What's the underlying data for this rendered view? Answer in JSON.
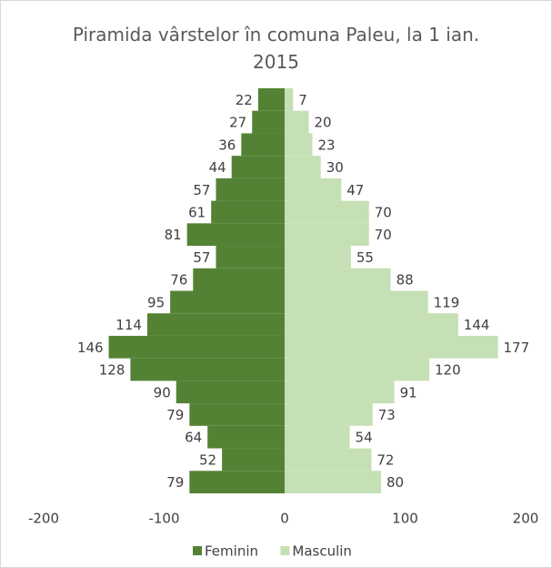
{
  "chart_data": {
    "type": "pyramid",
    "title": "Piramida vârstelor în comuna Paleu, la 1 ian. 2015",
    "orientation": "horizontal",
    "categories": [
      null,
      null,
      null,
      null,
      null,
      null,
      null,
      null,
      null,
      null,
      null,
      null,
      null,
      null,
      null,
      null,
      null,
      null
    ],
    "series": [
      {
        "name": "Feminin",
        "color": "#548235",
        "values": [
          -22,
          -27,
          -36,
          -44,
          -57,
          -61,
          -81,
          -57,
          -76,
          -95,
          -114,
          -146,
          -128,
          -90,
          -79,
          -64,
          -52,
          -79
        ],
        "value_labels": [
          "22",
          "27",
          "36",
          "44",
          "57",
          "61",
          "81",
          "57",
          "76",
          "95",
          "114",
          "146",
          "128",
          "90",
          "79",
          "64",
          "52",
          "79"
        ]
      },
      {
        "name": "Masculin",
        "color": "#c5e0b4",
        "values": [
          7,
          20,
          23,
          30,
          47,
          70,
          70,
          55,
          88,
          119,
          144,
          177,
          120,
          91,
          73,
          54,
          72,
          80
        ]
      }
    ],
    "xlim": [
      -200,
      200
    ],
    "xticks": [
      -200,
      -100,
      0,
      100,
      200
    ],
    "grid": false,
    "legend": "bottom"
  }
}
